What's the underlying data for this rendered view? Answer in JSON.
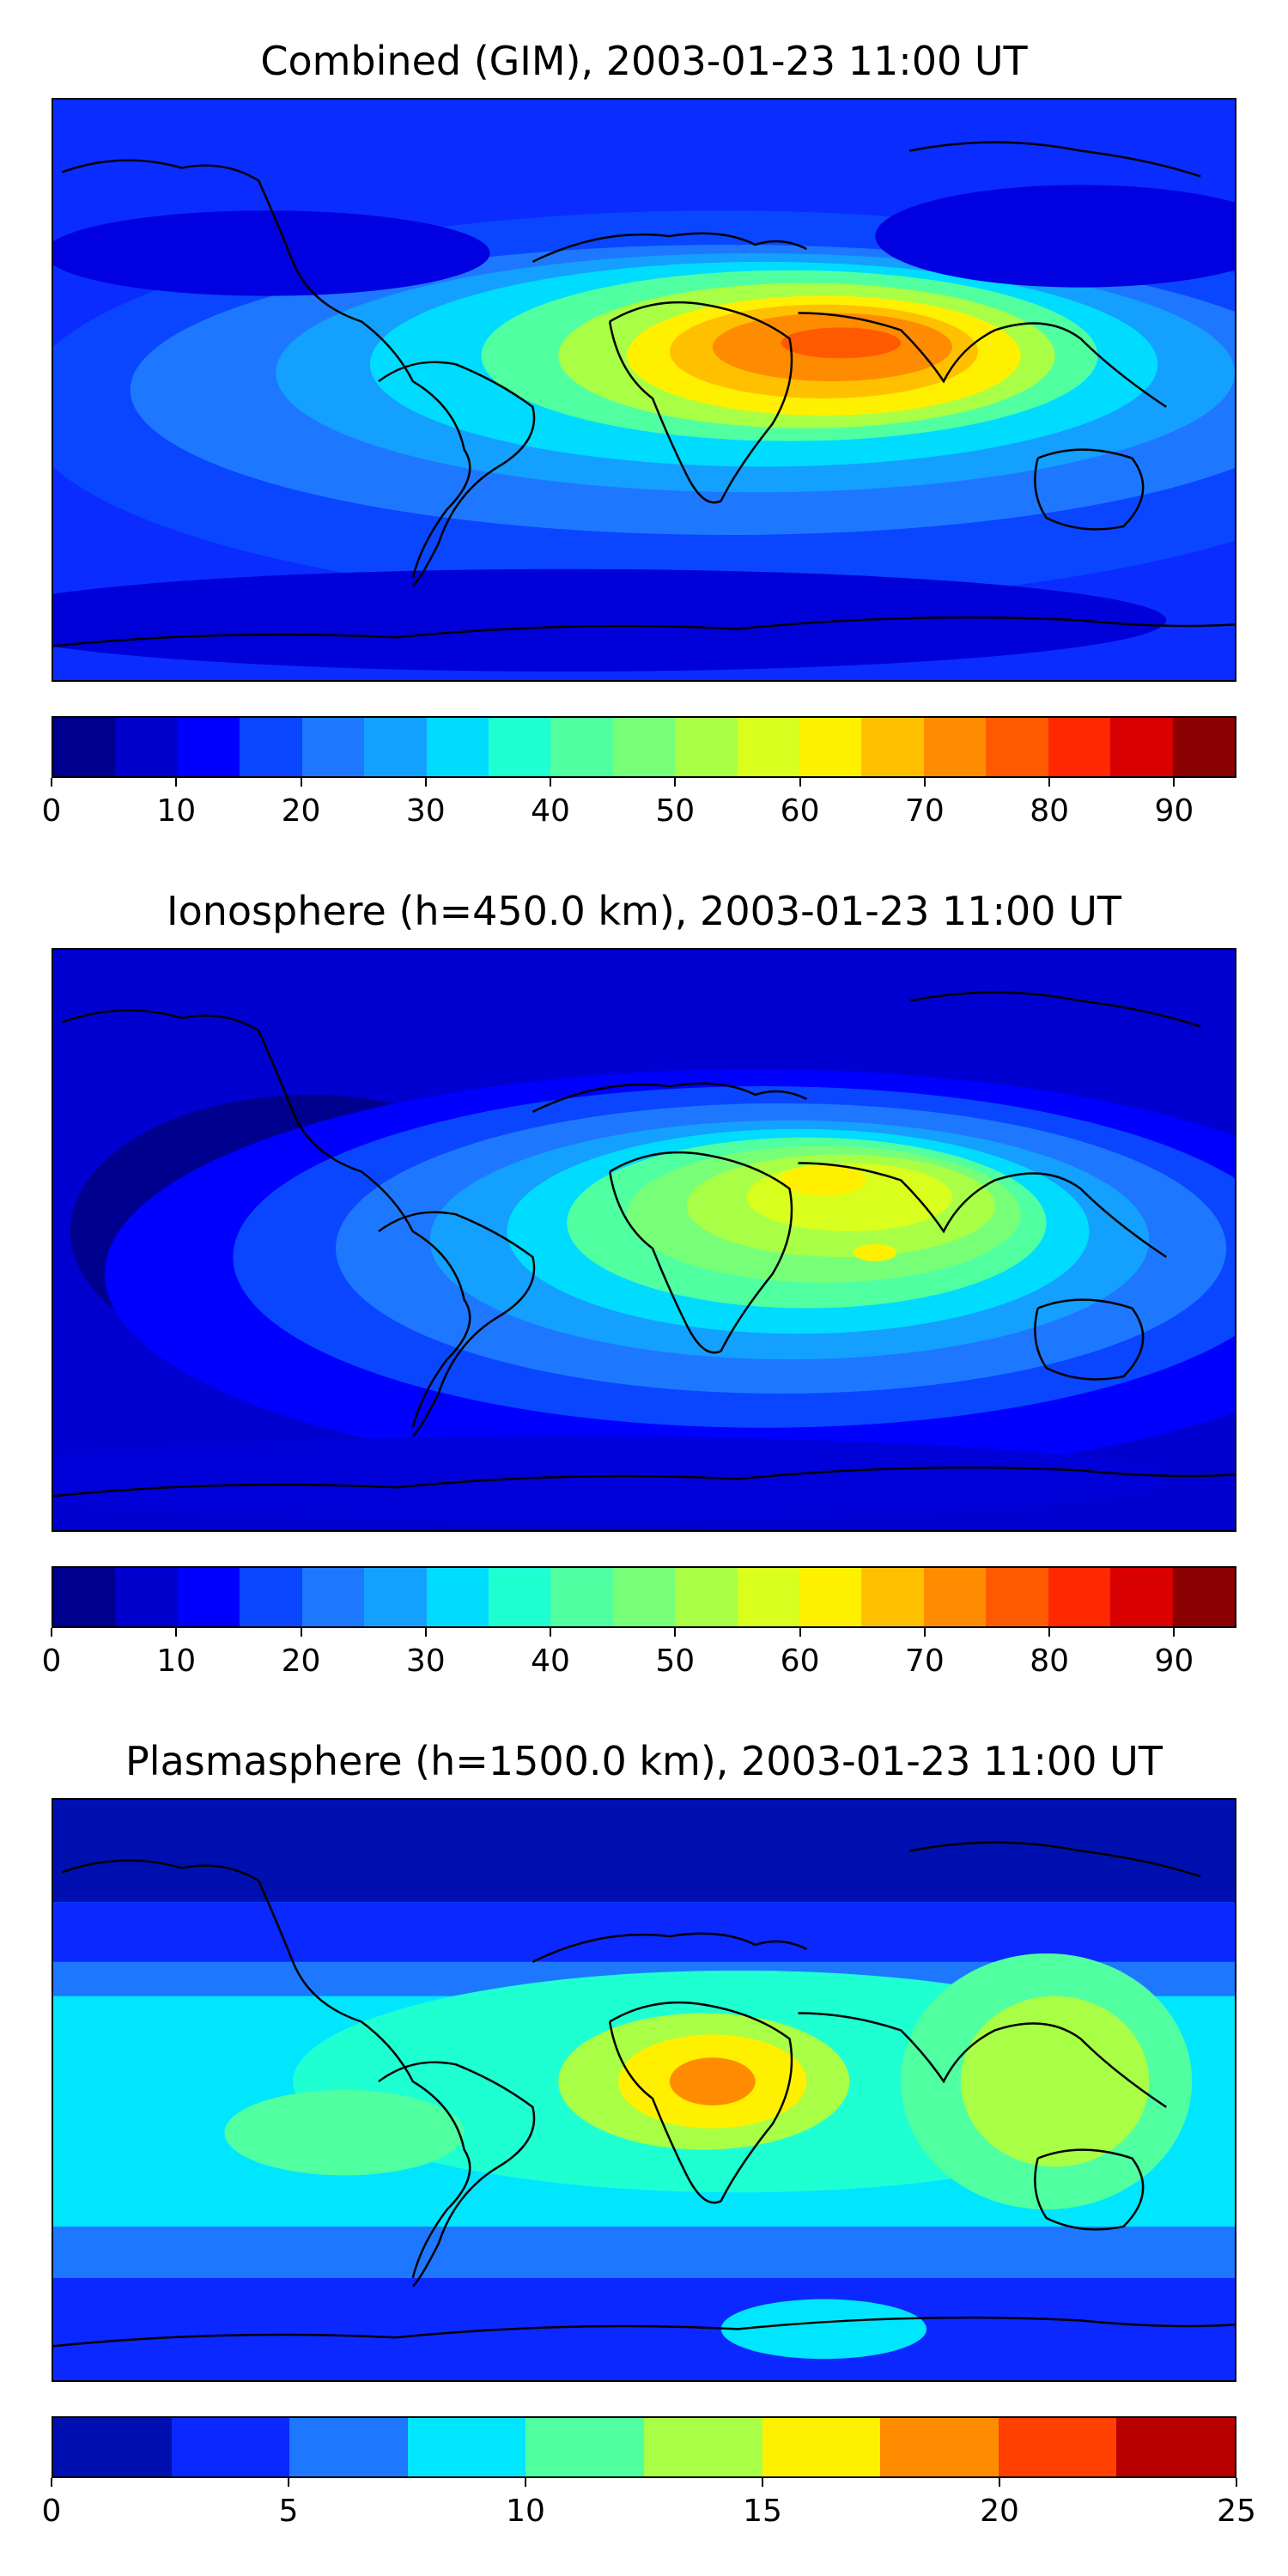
{
  "panels": [
    {
      "title": "Combined (GIM), 2003-01-23 11:00 UT",
      "colorbar": {
        "min": 0,
        "max": 95,
        "step": 5,
        "tick_labels": [
          "0",
          "10",
          "20",
          "30",
          "40",
          "50",
          "60",
          "70",
          "80",
          "90"
        ],
        "tick_values": [
          0,
          10,
          20,
          30,
          40,
          50,
          60,
          70,
          80,
          90
        ],
        "colors": [
          "#00008f",
          "#0000cc",
          "#0000ff",
          "#0a46ff",
          "#1e78ff",
          "#14a0ff",
          "#00dcff",
          "#1effd2",
          "#50ffa0",
          "#78ff78",
          "#a8ff46",
          "#d8ff1e",
          "#fff000",
          "#ffc000",
          "#ff8c00",
          "#ff5a00",
          "#ff2800",
          "#d80000",
          "#8b0000"
        ]
      },
      "map_field": {
        "background": "#0a2cff",
        "features": [
          {
            "name": "africa-arabia-maximum",
            "value": 80,
            "color": "#ff7000"
          },
          {
            "name": "equatorial-crest-east",
            "value": 60,
            "color": "#fff000"
          },
          {
            "name": "equatorial-crest-west",
            "value": 40,
            "color": "#1effd2"
          },
          {
            "name": "south-pacific-band",
            "value": 25,
            "color": "#1e78ff"
          },
          {
            "name": "north-pacific-low",
            "value": 10,
            "color": "#0000ff"
          }
        ]
      }
    },
    {
      "title": "Ionosphere  (h=450.0 km), 2003-01-23 11:00 UT",
      "colorbar": {
        "min": 0,
        "max": 95,
        "step": 5,
        "tick_labels": [
          "0",
          "10",
          "20",
          "30",
          "40",
          "50",
          "60",
          "70",
          "80",
          "90"
        ],
        "tick_values": [
          0,
          10,
          20,
          30,
          40,
          50,
          60,
          70,
          80,
          90
        ],
        "colors": [
          "#00008f",
          "#0000cc",
          "#0000ff",
          "#0a46ff",
          "#1e78ff",
          "#14a0ff",
          "#00dcff",
          "#1effd2",
          "#50ffa0",
          "#78ff78",
          "#a8ff46",
          "#d8ff1e",
          "#fff000",
          "#ffc000",
          "#ff8c00",
          "#ff5a00",
          "#ff2800",
          "#d80000",
          "#8b0000"
        ]
      },
      "map_field": {
        "background": "#0010d8",
        "features": [
          {
            "name": "arabia-maximum",
            "value": 65,
            "color": "#fff000"
          },
          {
            "name": "equatorial-crest",
            "value": 50,
            "color": "#a8ff46"
          },
          {
            "name": "mid-latitude-band",
            "value": 35,
            "color": "#14a0ff"
          },
          {
            "name": "south-atlantic-low",
            "value": 10,
            "color": "#0000ff"
          }
        ]
      }
    },
    {
      "title": "Plasmasphere (h=1500.0 km), 2003-01-23 11:00 UT",
      "colorbar": {
        "min": 0,
        "max": 25,
        "step": 2.5,
        "tick_labels": [
          "0",
          "5",
          "10",
          "15",
          "20",
          "25"
        ],
        "tick_values": [
          0,
          5,
          10,
          15,
          20,
          25
        ],
        "colors": [
          "#0010b0",
          "#0a28ff",
          "#1e78ff",
          "#00e6ff",
          "#50ffa0",
          "#a8ff46",
          "#fff000",
          "#ff8c00",
          "#ff4000",
          "#b80000"
        ]
      },
      "map_field": {
        "background": "#00e6ff",
        "features": [
          {
            "name": "central-africa-maximum",
            "value": 20,
            "color": "#ff8c00"
          },
          {
            "name": "southeast-asia-enhancement",
            "value": 15,
            "color": "#a8ff46"
          },
          {
            "name": "polar-low-north",
            "value": 2.5,
            "color": "#0010b0"
          },
          {
            "name": "polar-low-south",
            "value": 5,
            "color": "#0a28ff"
          }
        ]
      }
    }
  ]
}
